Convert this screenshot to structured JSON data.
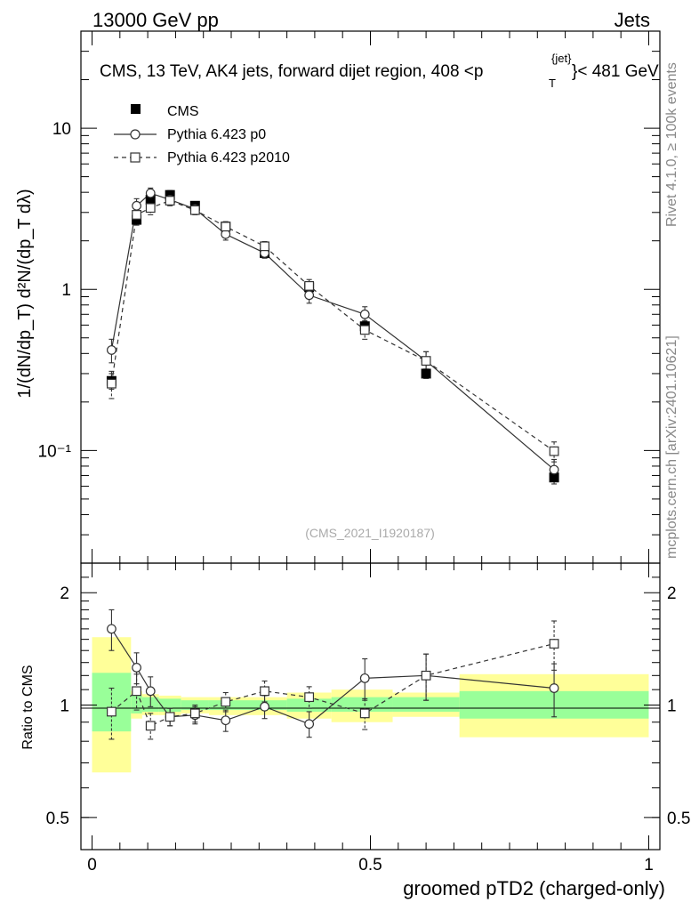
{
  "header": {
    "left": "13000 GeV pp",
    "right": "Jets"
  },
  "title": "CMS, 13 TeV, AK4 jets, forward dijet region, 408 <p",
  "title_sup": "{jet}",
  "title_sub": "T",
  "title_tail": "}< 481 GeV",
  "ylabel_main": "1/(dN/dp_T) d²N/(dp_T dλ)",
  "ylabel_ratio": "Ratio to CMS",
  "xlabel": "groomed pTD2 (charged-only)",
  "side_rivet": "Rivet 4.1.0, ≥ 100k events",
  "side_mcplots": "mcplots.cern.ch [arXiv:2401.10621]",
  "analysis_id": "(CMS_2021_I1920187)",
  "legend": {
    "cms": "CMS",
    "p0": "Pythia 6.423 p0",
    "p2010": "Pythia 6.423 p2010"
  },
  "ticks": {
    "main_y": [
      "10",
      "1",
      "10⁻¹"
    ],
    "ratio_y": [
      "2",
      "1",
      "0.5"
    ],
    "x": [
      "0",
      "0.5",
      "1"
    ]
  },
  "colors": {
    "data": "#000000",
    "mc": "#555555",
    "band_stat": "#99ff99",
    "band_total": "#ffff99"
  },
  "chart_data": [
    {
      "type": "scatter",
      "panel": "main",
      "yscale": "log",
      "xlim": [
        -0.02,
        1.02
      ],
      "ylim": [
        0.02,
        40
      ],
      "xlabel": "groomed pTD2 (charged-only)",
      "series": [
        {
          "name": "CMS",
          "x": [
            0.035,
            0.08,
            0.105,
            0.14,
            0.185,
            0.24,
            0.31,
            0.39,
            0.49,
            0.6,
            0.83
          ],
          "y": [
            0.27,
            2.7,
            3.6,
            3.85,
            3.3,
            2.45,
            1.68,
            1.03,
            0.59,
            0.3,
            0.068
          ],
          "err": [
            0.03,
            0.2,
            0.25,
            0.25,
            0.2,
            0.15,
            0.1,
            0.07,
            0.05,
            0.02,
            0.006
          ]
        },
        {
          "name": "Pythia 6.423 p0",
          "x": [
            0.035,
            0.08,
            0.105,
            0.14,
            0.185,
            0.24,
            0.31,
            0.39,
            0.49,
            0.6,
            0.83
          ],
          "y": [
            0.42,
            3.3,
            3.95,
            3.6,
            3.15,
            2.2,
            1.68,
            0.92,
            0.7,
            0.36,
            0.076
          ],
          "err": [
            0.07,
            0.35,
            0.3,
            0.25,
            0.2,
            0.18,
            0.12,
            0.1,
            0.08,
            0.05,
            0.012
          ]
        },
        {
          "name": "Pythia 6.423 p2010",
          "x": [
            0.035,
            0.08,
            0.105,
            0.14,
            0.185,
            0.24,
            0.31,
            0.39,
            0.49,
            0.6,
            0.83
          ],
          "y": [
            0.26,
            2.9,
            3.2,
            3.55,
            3.1,
            2.45,
            1.85,
            1.05,
            0.56,
            0.36,
            0.099
          ],
          "err": [
            0.05,
            0.3,
            0.3,
            0.25,
            0.2,
            0.18,
            0.13,
            0.1,
            0.07,
            0.05,
            0.014
          ]
        }
      ]
    },
    {
      "type": "scatter",
      "panel": "ratio",
      "yscale": "log",
      "xlim": [
        -0.02,
        1.02
      ],
      "ylim": [
        0.41,
        2.4
      ],
      "ylabel": "Ratio to CMS",
      "bands": [
        {
          "x0": 0.0,
          "x1": 0.07,
          "stat": [
            0.85,
            1.22
          ],
          "total": [
            0.66,
            1.52
          ]
        },
        {
          "x0": 0.07,
          "x1": 0.09,
          "stat": [
            0.95,
            1.06
          ],
          "total": [
            0.92,
            1.09
          ]
        },
        {
          "x0": 0.09,
          "x1": 0.12,
          "stat": [
            0.96,
            1.05
          ],
          "total": [
            0.94,
            1.07
          ]
        },
        {
          "x0": 0.12,
          "x1": 0.16,
          "stat": [
            0.96,
            1.04
          ],
          "total": [
            0.94,
            1.06
          ]
        },
        {
          "x0": 0.16,
          "x1": 0.21,
          "stat": [
            0.97,
            1.03
          ],
          "total": [
            0.95,
            1.05
          ]
        },
        {
          "x0": 0.21,
          "x1": 0.35,
          "stat": [
            0.97,
            1.03
          ],
          "total": [
            0.94,
            1.05
          ]
        },
        {
          "x0": 0.35,
          "x1": 0.43,
          "stat": [
            0.96,
            1.04
          ],
          "total": [
            0.92,
            1.08
          ]
        },
        {
          "x0": 0.43,
          "x1": 0.54,
          "stat": [
            0.96,
            1.05
          ],
          "total": [
            0.9,
            1.1
          ]
        },
        {
          "x0": 0.54,
          "x1": 0.66,
          "stat": [
            0.96,
            1.05
          ],
          "total": [
            0.93,
            1.08
          ]
        },
        {
          "x0": 0.66,
          "x1": 1.0,
          "stat": [
            0.92,
            1.09
          ],
          "total": [
            0.82,
            1.21
          ]
        }
      ],
      "series": [
        {
          "name": "Pythia 6.423 p0",
          "x": [
            0.035,
            0.08,
            0.105,
            0.14,
            0.185,
            0.24,
            0.31,
            0.39,
            0.49,
            0.6,
            0.83
          ],
          "y": [
            1.6,
            1.26,
            1.09,
            0.93,
            0.94,
            0.91,
            0.99,
            0.89,
            1.18,
            1.2,
            1.11
          ],
          "err": [
            0.2,
            0.12,
            0.1,
            0.05,
            0.05,
            0.06,
            0.07,
            0.07,
            0.15,
            0.17,
            0.18
          ]
        },
        {
          "name": "Pythia 6.423 p2010",
          "x": [
            0.035,
            0.08,
            0.105,
            0.14,
            0.185,
            0.24,
            0.31,
            0.39,
            0.49,
            0.6,
            0.83
          ],
          "y": [
            0.96,
            1.09,
            0.88,
            0.93,
            0.95,
            1.02,
            1.09,
            1.05,
            0.95,
            1.2,
            1.46
          ],
          "err": [
            0.15,
            0.12,
            0.07,
            0.05,
            0.05,
            0.06,
            0.07,
            0.07,
            0.09,
            0.17,
            0.22
          ]
        }
      ]
    }
  ]
}
